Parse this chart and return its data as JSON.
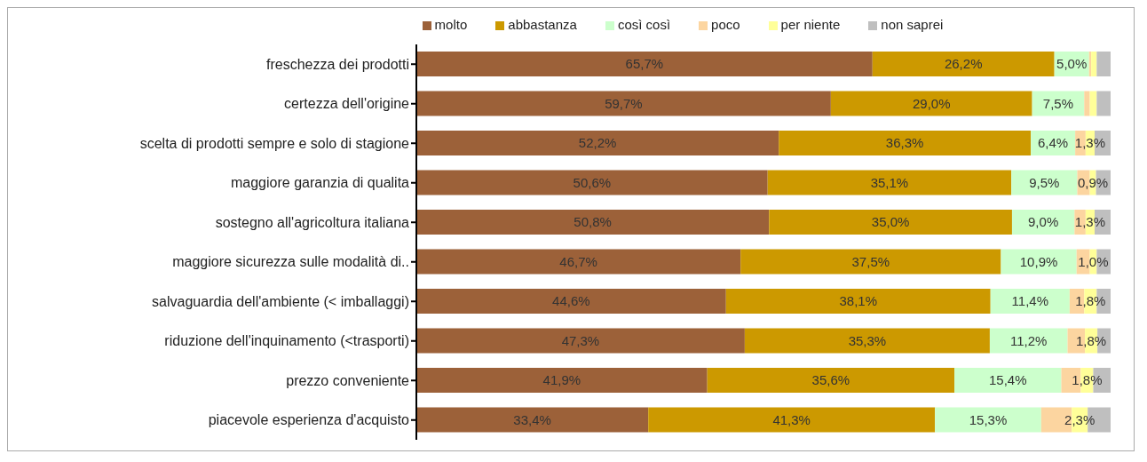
{
  "chart_data": {
    "type": "bar",
    "orientation": "horizontal",
    "stacked": true,
    "legend": "top",
    "tick_labels": "y",
    "xlim": [
      0,
      100
    ],
    "categories": [
      "freschezza dei prodotti",
      "certezza dell'origine",
      "scelta di prodotti sempre e solo di stagione",
      "maggiore garanzia di qualita",
      "sostegno all'agricoltura  italiana",
      "maggiore sicurezza sulle modalità di..",
      "salvaguardia dell'ambiente (< imballaggi)",
      "riduzione dell'inquinamento (<trasporti)",
      "prezzo conveniente",
      "piacevole esperienza d'acquisto"
    ],
    "series": [
      {
        "name": "molto",
        "color": "#9c6139",
        "values": [
          65.7,
          59.7,
          52.2,
          50.6,
          50.8,
          46.7,
          44.6,
          47.3,
          41.9,
          33.4
        ],
        "value_labels": [
          "65,7%",
          "59,7%",
          "52,2%",
          "50,6%",
          "50,8%",
          "46,7%",
          "44,6%",
          "47,3%",
          "41,9%",
          "33,4%"
        ]
      },
      {
        "name": "abbastanza",
        "color": "#cc9900",
        "values": [
          26.2,
          29.0,
          36.3,
          35.1,
          35.0,
          37.5,
          38.1,
          35.3,
          35.6,
          41.3
        ],
        "value_labels": [
          "26,2%",
          "29,0%",
          "36,3%",
          "35,1%",
          "35,0%",
          "37,5%",
          "38,1%",
          "35,3%",
          "35,6%",
          "41,3%"
        ]
      },
      {
        "name": "così così",
        "color": "#ccffcc",
        "values": [
          5.0,
          7.5,
          6.4,
          9.5,
          9.0,
          10.9,
          11.4,
          11.2,
          15.4,
          15.3
        ],
        "value_labels": [
          "5,0%",
          "7,5%",
          "6,4%",
          "9,5%",
          "9,0%",
          "10,9%",
          "11,4%",
          "11,2%",
          "15,4%",
          "15,3%"
        ]
      },
      {
        "name": "poco",
        "color": "#fcd5a0",
        "values": [
          0.3,
          0.8,
          1.5,
          1.8,
          1.6,
          1.9,
          2.1,
          2.5,
          2.8,
          4.4
        ]
      },
      {
        "name": "per niente",
        "color": "#ffff99",
        "values": [
          0.8,
          1.0,
          1.3,
          0.9,
          1.3,
          1.0,
          1.8,
          1.8,
          1.8,
          2.3
        ],
        "value_labels": [
          null,
          null,
          "1,3%",
          "0,9%",
          "1,3%",
          "1,0%",
          "1,8%",
          "1,8%",
          "1,8%",
          "2,3%"
        ]
      },
      {
        "name": "non saprei",
        "color": "#bfbfbf",
        "values": [
          2.0,
          2.0,
          2.3,
          2.1,
          2.3,
          2.0,
          2.0,
          1.9,
          2.5,
          3.3
        ]
      }
    ]
  }
}
